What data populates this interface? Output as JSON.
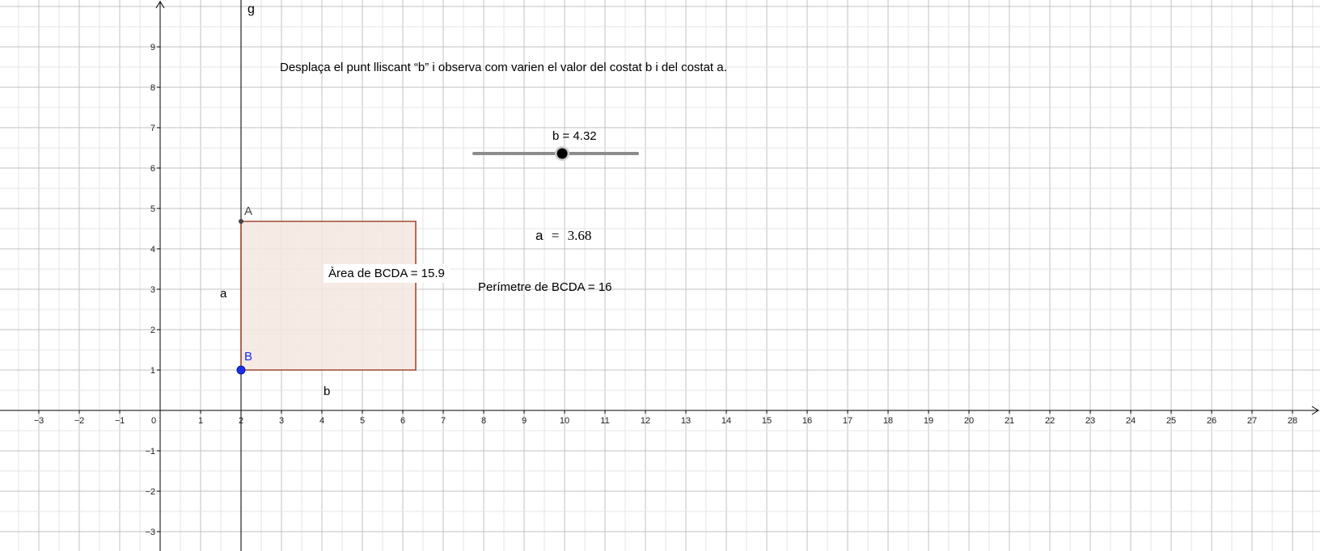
{
  "view": {
    "x_range": [
      -4,
      28.6
    ],
    "y_range": [
      -3.45,
      10.2
    ],
    "x_ticks": [
      -3,
      -2,
      -1,
      1,
      2,
      3,
      4,
      5,
      6,
      7,
      8,
      9,
      10,
      11,
      12,
      13,
      14,
      15,
      16,
      17,
      18,
      19,
      20,
      21,
      22,
      23,
      24,
      25,
      26,
      27,
      28
    ],
    "y_ticks": [
      -3,
      -2,
      -1,
      1,
      2,
      3,
      4,
      5,
      6,
      7,
      8,
      9
    ],
    "origin_label": "0",
    "grid_step": 1,
    "colors": {
      "grid": "#c0c0c0",
      "axis": "#000000",
      "rect_stroke": "#9e4a2e",
      "rect_fill": "#f5e6e1",
      "point_B": "#1a2ee6",
      "point_A": "#444444",
      "slider_track": "#8c8c8c"
    }
  },
  "line_g": {
    "name": "g",
    "x": 2
  },
  "instruction": "Desplaça el punt lliscant “b” i observa com varien el valor del costat b i del costat a.",
  "slider": {
    "name": "b",
    "label": "b = 4.32",
    "value": 4.32,
    "min": 0,
    "max": 8
  },
  "a_value": {
    "name": "a",
    "eq": "=",
    "value": "3.68"
  },
  "rectangle": {
    "B": {
      "name": "B",
      "x": 2,
      "y": 1
    },
    "A": {
      "name": "A",
      "x": 2,
      "y": 4.68
    },
    "width": 4.32,
    "side_a_label": "a",
    "side_b_label": "b"
  },
  "area_text": "Àrea de  BCDA = 15.9",
  "perimeter_text": "Perímetre de  BCDA = 16"
}
